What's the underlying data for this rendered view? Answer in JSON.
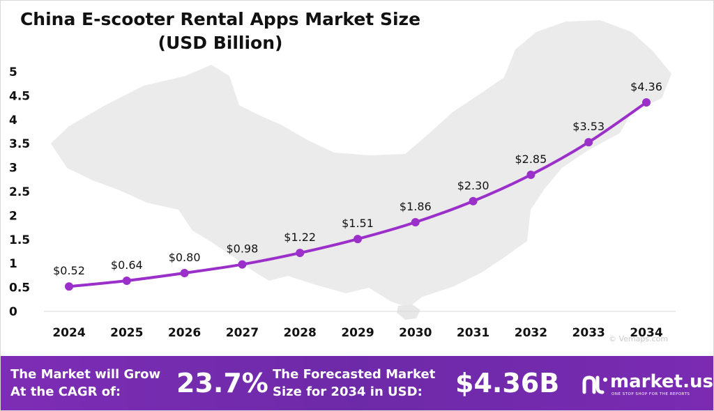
{
  "chart_data": {
    "type": "line",
    "title": "China E-scooter Rental Apps Market Size",
    "subtitle": "(USD Billion)",
    "categories": [
      "2024",
      "2025",
      "2026",
      "2027",
      "2028",
      "2029",
      "2030",
      "2031",
      "2032",
      "2033",
      "2034"
    ],
    "values": [
      0.52,
      0.64,
      0.8,
      0.98,
      1.22,
      1.51,
      1.86,
      2.3,
      2.85,
      3.53,
      4.36
    ],
    "data_labels": [
      "$0.52",
      "$0.64",
      "$0.80",
      "$0.98",
      "$1.22",
      "$1.51",
      "$1.86",
      "$2.30",
      "$2.85",
      "$3.53",
      "$4.36"
    ],
    "y_ticks": [
      "0",
      "0.5",
      "1",
      "1.5",
      "2",
      "2.5",
      "3",
      "3.5",
      "4",
      "4.5",
      "5"
    ],
    "ylim": [
      0,
      5
    ],
    "grid": false,
    "legend": "none",
    "line_color": "#9b2fc9",
    "marker_color": "#9b2fc9"
  },
  "footer": {
    "cagr_label_1": "The Market will Grow",
    "cagr_label_2": "At the CAGR of:",
    "cagr_value": "23.7%",
    "forecast_label_1": "The Forecasted Market",
    "forecast_label_2": "Size for 2034 in USD:",
    "forecast_value": "$4.36B",
    "brand_name": "market.us",
    "brand_tagline": "ONE STOP SHOP FOR THE REPORTS",
    "brand_icon": "market-us-logo-icon"
  },
  "watermark": "© Vemaps.com",
  "colors": {
    "footer_bg": "#6f2aa9",
    "map_fill": "#ebebeb"
  }
}
